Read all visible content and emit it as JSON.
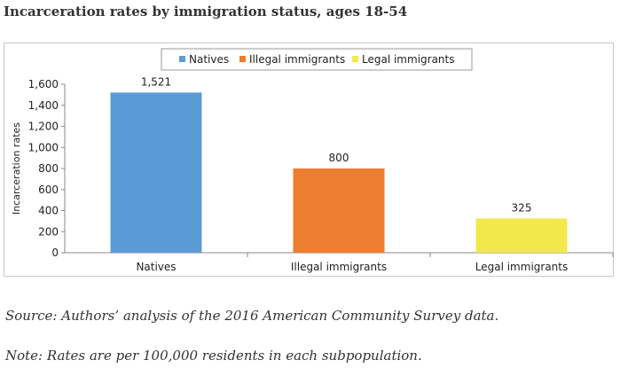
{
  "title": "Incarceration rates by immigration status, ages 18-54",
  "chart_data": {
    "type": "bar",
    "categories": [
      "Natives",
      "Illegal immigrants",
      "Legal immigrants"
    ],
    "series": [
      {
        "name": "Natives",
        "values": [
          1521,
          null,
          null
        ],
        "color": "#5b9bd5"
      },
      {
        "name": "Illegal immigrants",
        "values": [
          null,
          800,
          null
        ],
        "color": "#ed7d31"
      },
      {
        "name": "Legal immigrants",
        "values": [
          null,
          null,
          325
        ],
        "color": "#f2e84b"
      }
    ],
    "values": [
      1521,
      800,
      325
    ],
    "data_labels": [
      "1,521",
      "800",
      "325"
    ],
    "colors": [
      "#5b9bd5",
      "#ed7d31",
      "#f2e84b"
    ],
    "ylabel": "Incarceration rates",
    "xlabel": "",
    "ylim": [
      0,
      1600
    ],
    "yticks": [
      0,
      200,
      400,
      600,
      800,
      1000,
      1200,
      1400,
      1600
    ],
    "ytick_labels": [
      "0",
      "200",
      "400",
      "600",
      "800",
      "1,000",
      "1,200",
      "1,400",
      "1,600"
    ],
    "legend": [
      "Natives",
      "Illegal immigrants",
      "Legal immigrants"
    ],
    "legend_position": "top",
    "grid": false
  },
  "source": "Source: Authors’ analysis of the 2016 American Community Survey data.",
  "note": "Note: Rates are per 100,000 residents in each subpopulation."
}
